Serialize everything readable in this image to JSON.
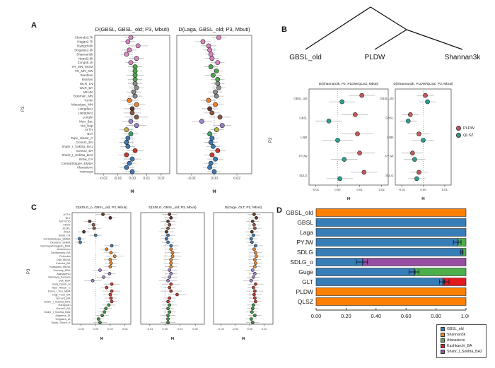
{
  "panels": {
    "a": {
      "label": "A"
    },
    "b": {
      "label": "B",
      "tree_leaves": [
        "GBSL_old",
        "PLDW",
        "Shannan3k"
      ]
    },
    "c": {
      "label": "C"
    },
    "d": {
      "label": "D"
    }
  },
  "chart_data": [
    {
      "id": "A1",
      "type": "forest",
      "panel": "A",
      "title": "D(GBSL, GBSL_old; P3, Mbuti)",
      "xlabel": "f4",
      "ylabel": "P3",
      "xlim": [
        -0.026,
        0.026
      ],
      "xticks": [
        -0.02,
        -0.01,
        0,
        0.01,
        0.02
      ],
      "categories": [
        "Chamdo2.7k",
        "Nagqu2.7k",
        "Nyingchi2k",
        "Shigatse2.6k",
        "Shannan3k",
        "Nepal2.8k",
        "Zongri5.1k",
        "YR_MN_WGM",
        "YR_MN_XW",
        "Bianbian",
        "Boshan",
        "WLR_LN",
        "WLR_BA",
        "AR14K",
        "Boisman_MN",
        "Yumin",
        "Miaozigou_MN",
        "Liangdao1",
        "Liangdao2",
        "Longlin",
        "Man_Bac",
        "Nui_Nap",
        "AYTH",
        "BLT",
        "Tepe_Hissar_C",
        "Gonur1_BA",
        "Shahr_I_Sokhta_BA1",
        "Gonur2_BA",
        "Shahr_I_Sokhta_BA2",
        "Botai_CA",
        "CentralSteppe_EMBA",
        "Afanasievo",
        "Yamnaya"
      ],
      "values": [
        -0.001,
        -0.003,
        0.004,
        -0.002,
        -0.004,
        0.003,
        -0.001,
        0.002,
        0.002,
        0.002,
        0.002,
        0.002,
        0.003,
        0.001,
        0.002,
        -0.002,
        0.003,
        0.0,
        0.0,
        0.003,
        -0.001,
        0.003,
        -0.004,
        -0.001,
        -0.003,
        -0.004,
        -0.003,
        0.002,
        -0.004,
        0.0,
        -0.002,
        -0.004,
        0.0
      ],
      "errors": [
        0.004,
        0.005,
        0.007,
        0.005,
        0.004,
        0.005,
        0.004,
        0.005,
        0.005,
        0.006,
        0.005,
        0.005,
        0.005,
        0.005,
        0.005,
        0.006,
        0.006,
        0.006,
        0.006,
        0.008,
        0.006,
        0.007,
        0.005,
        0.005,
        0.005,
        0.005,
        0.005,
        0.006,
        0.006,
        0.006,
        0.005,
        0.005,
        0.005
      ],
      "colors": [
        "#D884C2",
        "#D884C2",
        "#D884C2",
        "#D884C2",
        "#D884C2",
        "#D884C2",
        "#D884C2",
        "#4BA64B",
        "#4BA64B",
        "#4BA64B",
        "#4BA64B",
        "#8C8C8C",
        "#8C8C8C",
        "#8C8C8C",
        "#8C8C8C",
        "#EF8228",
        "#EF8228",
        "#5E3A33",
        "#8B5A46",
        "#8B5A46",
        "#9C80C6",
        "#9C80C6",
        "#B8B53A",
        "#3FA06A",
        "#3D7AB5",
        "#3D7AB5",
        "#3D7AB5",
        "#C23B33",
        "#C23B33",
        "#3D7AB5",
        "#3D7AB5",
        "#3D7AB5",
        "#3D7AB5"
      ]
    },
    {
      "id": "A2",
      "type": "forest",
      "panel": "A",
      "title": "D(Laga, GBSL_old; P3, Mbuti)",
      "xlabel": "f4",
      "ylabel": "P3",
      "xlim": [
        -0.033,
        0.033
      ],
      "xticks": [
        -0.02,
        0,
        0.02
      ],
      "categories": [
        "Chamdo2.7k",
        "Nagqu2.7k",
        "Nyingchi2k",
        "Shigatse2.6k",
        "Shannan3k",
        "Nepal2.8k",
        "Zongri5.1k",
        "YR_MN_WGM",
        "YR_MN_XW",
        "Bianbian",
        "Boshan",
        "WLR_LN",
        "WLR_BA",
        "AR14K",
        "Boisman_MN",
        "Yumin",
        "Miaozigou_MN",
        "Liangdao1",
        "Liangdao2",
        "Longlin",
        "Man_Bac",
        "Nui_Nap",
        "AYTH",
        "BLT",
        "Tepe_Hissar_C",
        "Gonur1_BA",
        "Shahr_I_Sokhta_BA1",
        "Gonur2_BA",
        "Shahr_I_Sokhta_BA2",
        "Botai_CA",
        "CentralSteppe_EMBA",
        "Afanasievo",
        "Yamnaya"
      ],
      "values": [
        0.004,
        -0.01,
        -0.005,
        -0.004,
        -0.003,
        -0.002,
        0.003,
        -0.003,
        0.002,
        -0.001,
        0.003,
        0.003,
        0.004,
        0.001,
        0.002,
        -0.005,
        0.001,
        -0.004,
        -0.002,
        0.005,
        -0.011,
        0.007,
        0.002,
        -0.004,
        -0.002,
        -0.003,
        -0.001,
        0.003,
        -0.002,
        0.001,
        -0.003,
        -0.004,
        0.0
      ],
      "errors": [
        0.006,
        0.007,
        0.007,
        0.006,
        0.005,
        0.006,
        0.006,
        0.006,
        0.006,
        0.007,
        0.006,
        0.006,
        0.006,
        0.006,
        0.006,
        0.007,
        0.007,
        0.007,
        0.007,
        0.009,
        0.009,
        0.008,
        0.006,
        0.006,
        0.006,
        0.006,
        0.006,
        0.007,
        0.007,
        0.007,
        0.006,
        0.006,
        0.006
      ],
      "colors": [
        "#D884C2",
        "#D884C2",
        "#D884C2",
        "#D884C2",
        "#D884C2",
        "#D884C2",
        "#D884C2",
        "#4BA64B",
        "#4BA64B",
        "#4BA64B",
        "#4BA64B",
        "#8C8C8C",
        "#8C8C8C",
        "#8C8C8C",
        "#8C8C8C",
        "#EF8228",
        "#EF8228",
        "#5E3A33",
        "#8B5A46",
        "#8B5A46",
        "#9C80C6",
        "#9C80C6",
        "#B8B53A",
        "#3FA06A",
        "#3D7AB5",
        "#3D7AB5",
        "#3D7AB5",
        "#C23B33",
        "#C23B33",
        "#3D7AB5",
        "#3D7AB5",
        "#3D7AB5",
        "#3D7AB5"
      ]
    },
    {
      "id": "B1",
      "type": "forest",
      "panel": "B",
      "title": "D(Shannan3k, P2; PLDW/QLSZ, Mbuti)",
      "xlabel": "f4",
      "ylabel": "P2",
      "xlim": [
        -0.013,
        0.023
      ],
      "xticks": [
        -0.01,
        0,
        0.01,
        0.02
      ],
      "categories": [
        "GBSL_old",
        "GBSL",
        "Laga",
        "PYJW",
        "SDLG"
      ],
      "series": [
        {
          "name": "PLDW",
          "color": "#C85A5A",
          "values": [
            0.011,
            0.008,
            0.009,
            0.01,
            0.012
          ],
          "errors": [
            0.006,
            0.006,
            0.007,
            0.007,
            0.006
          ]
        },
        {
          "name": "QLSZ",
          "color": "#2AA193",
          "values": [
            0.002,
            -0.004,
            0.0,
            0.003,
            0.001
          ],
          "errors": [
            0.006,
            0.006,
            0.007,
            0.006,
            0.006
          ]
        }
      ]
    },
    {
      "id": "B2",
      "type": "forest",
      "panel": "B",
      "title": "D(Shannan3k, PLDW/QLSZ; P3, Mbuti)",
      "xlabel": "f4",
      "ylabel": "P3",
      "xlim": [
        -0.013,
        0.013
      ],
      "xticks": [
        -0.01,
        0,
        0.01
      ],
      "categories": [
        "GBSL_old",
        "GBSL",
        "Laga",
        "PYJW",
        "SDLG"
      ],
      "series": [
        {
          "name": "PLDW",
          "color": "#C85A5A",
          "values": [
            0.001,
            -0.006,
            -0.002,
            -0.005,
            -0.002
          ],
          "errors": [
            0.004,
            0.004,
            0.005,
            0.005,
            0.004
          ]
        },
        {
          "name": "QLSZ",
          "color": "#2AA193",
          "values": [
            0.002,
            -0.007,
            0.0,
            -0.004,
            -0.003
          ],
          "errors": [
            0.004,
            0.004,
            0.005,
            0.005,
            0.004
          ]
        }
      ]
    },
    {
      "id": "C1",
      "type": "forest",
      "panel": "C",
      "title": "D(SDLG_o, GBSL_old; P3, Mbuti)",
      "xlabel": "f4",
      "ylabel": "P3",
      "xlim": [
        -0.032,
        0.048
      ],
      "xticks": [
        -0.02,
        0,
        0.02,
        0.04
      ],
      "categories": [
        "AYTH",
        "BLT",
        "M-IV2/16",
        "XKSX",
        "JEZKL",
        "ZSLA",
        "Botai_CA",
        "CentralSteppe_EMBA",
        "Okunevo_EMBA",
        "YamnayaKaragash_EBA",
        "Andronovo",
        "Zevakinskiy_BA",
        "Petrovka",
        "Dali_MLBA",
        "Kokcha_BA",
        "Karagash_MLBA",
        "Kumsay_EBA",
        "Afanasievo",
        "Yamnaya_Samara",
        "Dali_EBA",
        "Ganj_Dareh_N",
        "Tepe_Hissar_C",
        "Darra_I_Kur_MBA",
        "Hajji_Firuz_BA",
        "Gonur1_BA",
        "Shahr_I_Sokhta_BA1",
        "Harappan",
        "Gonur2_BA",
        "Shahr_I_Sokhta_BA2",
        "Aligrama_IA",
        "Gogdara_IA",
        "Saidu_Sharif_H"
      ],
      "values": [
        0.01,
        0.02,
        -0.008,
        -0.003,
        -0.002,
        -0.016,
        0.0,
        -0.022,
        -0.021,
        0.022,
        0.015,
        0.021,
        0.026,
        0.02,
        0.021,
        0.02,
        0.006,
        0.019,
        0.011,
        -0.004,
        0.022,
        0.015,
        0.022,
        0.02,
        0.021,
        0.022,
        0.018,
        0.014,
        0.012,
        0.009,
        0.004,
        0.006
      ],
      "errors": [
        0.01,
        0.008,
        0.008,
        0.007,
        0.009,
        0.008,
        0.009,
        0.007,
        0.007,
        0.01,
        0.008,
        0.009,
        0.012,
        0.009,
        0.009,
        0.008,
        0.01,
        0.008,
        0.009,
        0.012,
        0.011,
        0.008,
        0.012,
        0.01,
        0.008,
        0.008,
        0.009,
        0.008,
        0.008,
        0.009,
        0.008,
        0.009
      ],
      "colors": [
        "#6E3A2E",
        "#54342A",
        "#6E3A2E",
        "#8A5A46",
        "#8A5A46",
        "#54342A",
        "#3D7AB5",
        "#3D7AB5",
        "#3D7AB5",
        "#3D7AB5",
        "#E8842C",
        "#E8842C",
        "#E8842C",
        "#E8842C",
        "#E8842C",
        "#E8842C",
        "#9C80C6",
        "#9C80C6",
        "#9C80C6",
        "#9C80C6",
        "#C23B33",
        "#C23B33",
        "#C23B33",
        "#C23B33",
        "#C23B33",
        "#C23B33",
        "#3F9143",
        "#3F9143",
        "#3F9143",
        "#3F9143",
        "#3F9143",
        "#3F9143"
      ]
    },
    {
      "id": "C2",
      "type": "forest",
      "panel": "C",
      "title": "D(SDLG, GBSL_old; P3, Mbuti)",
      "xlabel": "f4",
      "ylabel": "P3",
      "xlim": [
        -0.016,
        0.026
      ],
      "xticks": [
        -0.01,
        0,
        0.01,
        0.02
      ],
      "categories": [
        "AYTH",
        "BLT",
        "M-IV2/16",
        "XKSX",
        "JEZKL",
        "ZSLA",
        "Botai_CA",
        "CentralSteppe_EMBA",
        "Okunevo_EMBA",
        "YamnayaKaragash_EBA",
        "Andronovo",
        "Zevakinskiy_BA",
        "Petrovka",
        "Dali_MLBA",
        "Kokcha_BA",
        "Karagash_MLBA",
        "Kumsay_EBA",
        "Afanasievo",
        "Yamnaya_Samara",
        "Dali_EBA",
        "Ganj_Dareh_N",
        "Tepe_Hissar_C",
        "Darra_I_Kur_MBA",
        "Hajji_Firuz_BA",
        "Gonur1_BA",
        "Shahr_I_Sokhta_BA1",
        "Harappan",
        "Gonur2_BA",
        "Shahr_I_Sokhta_BA2",
        "Aligrama_IA",
        "Gogdara_IA",
        "Saidu_Sharif_H"
      ],
      "values": [
        0.003,
        0.004,
        0.002,
        0.003,
        0.002,
        0.001,
        0.002,
        0.001,
        0.002,
        0.004,
        0.004,
        0.005,
        0.005,
        0.004,
        0.004,
        0.004,
        0.003,
        0.004,
        0.003,
        0.002,
        0.004,
        0.003,
        0.004,
        0.008,
        0.003,
        0.002,
        0.003,
        0.002,
        0.003,
        0.002,
        0.002,
        0.002
      ],
      "errors": [
        0.005,
        0.004,
        0.005,
        0.004,
        0.005,
        0.005,
        0.005,
        0.004,
        0.004,
        0.005,
        0.004,
        0.005,
        0.006,
        0.005,
        0.005,
        0.004,
        0.005,
        0.004,
        0.005,
        0.006,
        0.006,
        0.004,
        0.007,
        0.006,
        0.004,
        0.004,
        0.005,
        0.004,
        0.004,
        0.005,
        0.004,
        0.005
      ],
      "colors": [
        "#6E3A2E",
        "#54342A",
        "#6E3A2E",
        "#8A5A46",
        "#8A5A46",
        "#54342A",
        "#3D7AB5",
        "#3D7AB5",
        "#3D7AB5",
        "#3D7AB5",
        "#E8842C",
        "#E8842C",
        "#E8842C",
        "#E8842C",
        "#E8842C",
        "#E8842C",
        "#9C80C6",
        "#9C80C6",
        "#9C80C6",
        "#9C80C6",
        "#C23B33",
        "#C23B33",
        "#C23B33",
        "#C23B33",
        "#C23B33",
        "#C23B33",
        "#3F9143",
        "#3F9143",
        "#3F9143",
        "#3F9143",
        "#3F9143",
        "#3F9143"
      ]
    },
    {
      "id": "C3",
      "type": "forest",
      "panel": "C",
      "title": "D(Guge, GLT; P3, Mbuti)",
      "xlabel": "f4",
      "ylabel": "P3",
      "xlim": [
        -0.05,
        0.032
      ],
      "xticks": [
        -0.04,
        -0.02,
        0,
        0.02
      ],
      "categories": [
        "AYTH",
        "BLT",
        "M-IV2/16",
        "XKSX",
        "JEZKL",
        "ZSLA",
        "Botai_CA",
        "CentralSteppe_EMBA",
        "Okunevo_EMBA",
        "YamnayaKaragash_EBA",
        "Andronovo",
        "Zevakinskiy_BA",
        "Petrovka",
        "Dali_MLBA",
        "Kokcha_BA",
        "Karagash_MLBA",
        "Kumsay_EBA",
        "Afanasievo",
        "Yamnaya_Samara",
        "Dali_EBA",
        "Ganj_Dareh_N",
        "Tepe_Hissar_C",
        "Darra_I_Kur_MBA",
        "Hajji_Firuz_BA",
        "Gonur1_BA",
        "Shahr_I_Sokhta_BA1",
        "Harappan",
        "Gonur2_BA",
        "Shahr_I_Sokhta_BA2",
        "Aligrama_IA",
        "Gogdara_IA",
        "Saidu_Sharif_H"
      ],
      "values": [
        0.006,
        0.009,
        0.004,
        0.006,
        0.007,
        0.003,
        0.005,
        0.002,
        0.003,
        0.008,
        0.006,
        0.008,
        0.009,
        0.007,
        0.008,
        0.007,
        0.004,
        0.007,
        0.005,
        0.002,
        0.008,
        0.005,
        0.007,
        0.006,
        0.007,
        0.008,
        0.005,
        0.004,
        0.003,
        0.007,
        0.002,
        0.004
      ],
      "errors": [
        0.009,
        0.008,
        0.009,
        0.008,
        0.009,
        0.009,
        0.009,
        0.008,
        0.008,
        0.01,
        0.008,
        0.009,
        0.011,
        0.009,
        0.009,
        0.008,
        0.01,
        0.008,
        0.009,
        0.011,
        0.011,
        0.008,
        0.012,
        0.01,
        0.008,
        0.008,
        0.009,
        0.008,
        0.008,
        0.009,
        0.008,
        0.009
      ],
      "colors": [
        "#6E3A2E",
        "#54342A",
        "#6E3A2E",
        "#8A5A46",
        "#8A5A46",
        "#54342A",
        "#3D7AB5",
        "#3D7AB5",
        "#3D7AB5",
        "#3D7AB5",
        "#E8842C",
        "#E8842C",
        "#E8842C",
        "#E8842C",
        "#E8842C",
        "#E8842C",
        "#9C80C6",
        "#9C80C6",
        "#9C80C6",
        "#9C80C6",
        "#C23B33",
        "#C23B33",
        "#C23B33",
        "#C23B33",
        "#C23B33",
        "#C23B33",
        "#3F9143",
        "#3F9143",
        "#3F9143",
        "#3F9143",
        "#3F9143",
        "#3F9143"
      ]
    },
    {
      "id": "D",
      "type": "stacked_bar_h",
      "panel": "D",
      "title": "",
      "xlabel": "",
      "ylabel": "",
      "xlim": [
        0,
        1
      ],
      "xticks": [
        0,
        0.2,
        0.4,
        0.6,
        0.8,
        1.0
      ],
      "categories": [
        "GBSL_old",
        "GBSL",
        "Laga",
        "PYJW",
        "SDLG",
        "SDLG_o",
        "Guge",
        "GLT",
        "PLDW",
        "QLSZ"
      ],
      "series": [
        {
          "name": "GBSL_old",
          "color": "#377EB8",
          "values": [
            0,
            1,
            1,
            0.945,
            0.975,
            0.31,
            0.655,
            0.845,
            0,
            0
          ]
        },
        {
          "name": "Shannan3k",
          "color": "#FF7F00",
          "values": [
            1,
            0,
            0,
            0,
            0,
            0,
            0,
            0,
            1,
            1
          ]
        },
        {
          "name": "Afanasievo",
          "color": "#4DAF4A",
          "values": [
            0,
            0,
            0,
            0.055,
            0.025,
            0,
            0.345,
            0,
            0,
            0
          ]
        },
        {
          "name": "Kashkarchi_BA",
          "color": "#E41A1C",
          "values": [
            0,
            0,
            0,
            0,
            0,
            0,
            0,
            0.155,
            0,
            0
          ]
        },
        {
          "name": "Shahr_I_Sokhta_BA2",
          "color": "#984EA3",
          "values": [
            0,
            0,
            0,
            0,
            0,
            0.69,
            0,
            0,
            0,
            0
          ]
        }
      ],
      "error_bars": [
        {
          "row": 3,
          "x": 0.932,
          "e": 0.016
        },
        {
          "row": 3,
          "x": 0.957,
          "e": 0.01
        },
        {
          "row": 4,
          "x": 0.972,
          "e": 0.008
        },
        {
          "row": 5,
          "x": 0.29,
          "e": 0.022
        },
        {
          "row": 5,
          "x": 0.327,
          "e": 0.016
        },
        {
          "row": 6,
          "x": 0.64,
          "e": 0.02
        },
        {
          "row": 6,
          "x": 0.672,
          "e": 0.014
        },
        {
          "row": 7,
          "x": 0.838,
          "e": 0.015
        },
        {
          "row": 7,
          "x": 0.872,
          "e": 0.015
        }
      ]
    }
  ]
}
